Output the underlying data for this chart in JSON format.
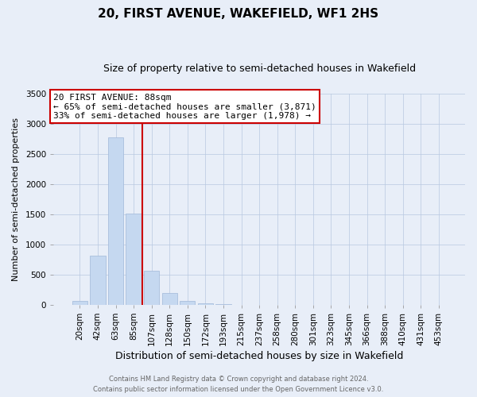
{
  "title": "20, FIRST AVENUE, WAKEFIELD, WF1 2HS",
  "subtitle": "Size of property relative to semi-detached houses in Wakefield",
  "xlabel": "Distribution of semi-detached houses by size in Wakefield",
  "ylabel": "Number of semi-detached properties",
  "bar_labels": [
    "20sqm",
    "42sqm",
    "63sqm",
    "85sqm",
    "107sqm",
    "128sqm",
    "150sqm",
    "172sqm",
    "193sqm",
    "215sqm",
    "237sqm",
    "258sqm",
    "280sqm",
    "301sqm",
    "323sqm",
    "345sqm",
    "366sqm",
    "388sqm",
    "410sqm",
    "431sqm",
    "453sqm"
  ],
  "bar_heights": [
    65,
    820,
    2780,
    1510,
    560,
    190,
    60,
    30,
    15,
    5,
    3,
    2,
    1,
    1,
    0,
    0,
    0,
    0,
    0,
    0,
    0
  ],
  "bar_color": "#c5d8f0",
  "bar_edgecolor": "#a0b8d8",
  "vline_color": "#cc0000",
  "vline_x": 3.5,
  "ylim": [
    0,
    3500
  ],
  "yticks": [
    0,
    500,
    1000,
    1500,
    2000,
    2500,
    3000,
    3500
  ],
  "annotation_title": "20 FIRST AVENUE: 88sqm",
  "annotation_line1": "← 65% of semi-detached houses are smaller (3,871)",
  "annotation_line2": "33% of semi-detached houses are larger (1,978) →",
  "annotation_box_color": "#ffffff",
  "annotation_box_edgecolor": "#cc0000",
  "footer_line1": "Contains HM Land Registry data © Crown copyright and database right 2024.",
  "footer_line2": "Contains public sector information licensed under the Open Government Licence v3.0.",
  "background_color": "#e8eef8",
  "plot_background": "#e8eef8",
  "title_fontsize": 11,
  "subtitle_fontsize": 9,
  "tick_fontsize": 7.5,
  "ylabel_fontsize": 8,
  "xlabel_fontsize": 9
}
